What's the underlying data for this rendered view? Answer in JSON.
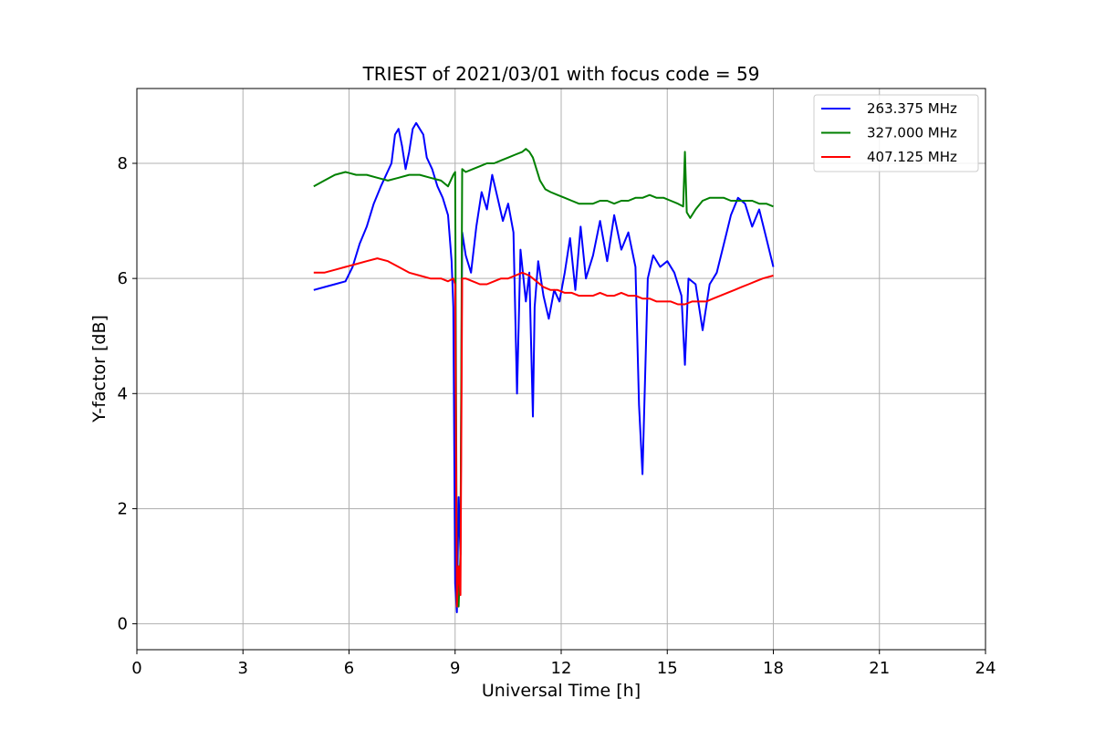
{
  "chart_data": {
    "type": "line",
    "title": "TRIEST of 2021/03/01 with focus code = 59",
    "xlabel": "Universal Time [h]",
    "ylabel": "Y-factor [dB]",
    "xlim": [
      0,
      24
    ],
    "ylim": [
      -0.45,
      9.3
    ],
    "xticks": [
      0,
      3,
      6,
      9,
      12,
      15,
      18,
      21,
      24
    ],
    "yticks": [
      0,
      2,
      4,
      6,
      8
    ],
    "grid": true,
    "legend_position": "top-right",
    "series": [
      {
        "name": "263.375 MHz",
        "color": "#0000ff",
        "x": [
          5.0,
          5.3,
          5.6,
          5.9,
          6.1,
          6.3,
          6.5,
          6.7,
          6.9,
          7.05,
          7.2,
          7.3,
          7.4,
          7.5,
          7.6,
          7.7,
          7.8,
          7.9,
          8.0,
          8.1,
          8.2,
          8.35,
          8.5,
          8.65,
          8.8,
          8.9,
          8.95,
          9.0,
          9.05,
          9.1,
          9.15,
          9.2,
          9.3,
          9.45,
          9.6,
          9.75,
          9.9,
          10.05,
          10.2,
          10.35,
          10.5,
          10.65,
          10.75,
          10.85,
          11.0,
          11.1,
          11.2,
          11.25,
          11.35,
          11.5,
          11.65,
          11.8,
          11.95,
          12.1,
          12.25,
          12.4,
          12.55,
          12.7,
          12.9,
          13.1,
          13.3,
          13.5,
          13.7,
          13.9,
          14.1,
          14.2,
          14.3,
          14.45,
          14.6,
          14.8,
          15.0,
          15.2,
          15.4,
          15.5,
          15.6,
          15.8,
          16.0,
          16.2,
          16.4,
          16.6,
          16.8,
          17.0,
          17.2,
          17.4,
          17.6,
          17.8,
          18.0
        ],
        "y": [
          5.8,
          5.85,
          5.9,
          5.95,
          6.2,
          6.6,
          6.9,
          7.3,
          7.6,
          7.8,
          8.0,
          8.5,
          8.6,
          8.3,
          7.9,
          8.2,
          8.6,
          8.7,
          8.6,
          8.5,
          8.1,
          7.9,
          7.6,
          7.4,
          7.1,
          6.3,
          5.5,
          0.7,
          0.2,
          2.2,
          1.2,
          6.8,
          6.4,
          6.1,
          6.9,
          7.5,
          7.2,
          7.8,
          7.4,
          7.0,
          7.3,
          6.8,
          4.0,
          6.5,
          5.6,
          6.1,
          3.6,
          5.5,
          6.3,
          5.7,
          5.3,
          5.8,
          5.6,
          6.1,
          6.7,
          5.8,
          6.9,
          6.0,
          6.4,
          7.0,
          6.3,
          7.1,
          6.5,
          6.8,
          6.2,
          3.8,
          2.6,
          6.0,
          6.4,
          6.2,
          6.3,
          6.1,
          5.7,
          4.5,
          6.0,
          5.9,
          5.1,
          5.9,
          6.1,
          6.6,
          7.1,
          7.4,
          7.3,
          6.9,
          7.2,
          6.7,
          6.2
        ]
      },
      {
        "name": "327.000 MHz",
        "color": "#008000",
        "x": [
          5.0,
          5.3,
          5.6,
          5.9,
          6.2,
          6.5,
          6.8,
          7.1,
          7.4,
          7.7,
          8.0,
          8.3,
          8.6,
          8.8,
          8.95,
          9.0,
          9.05,
          9.1,
          9.15,
          9.2,
          9.3,
          9.5,
          9.7,
          9.9,
          10.1,
          10.3,
          10.5,
          10.7,
          10.9,
          11.0,
          11.1,
          11.2,
          11.3,
          11.4,
          11.55,
          11.7,
          11.9,
          12.1,
          12.3,
          12.5,
          12.7,
          12.9,
          13.1,
          13.3,
          13.5,
          13.7,
          13.9,
          14.1,
          14.3,
          14.5,
          14.7,
          14.9,
          15.1,
          15.3,
          15.45,
          15.5,
          15.55,
          15.65,
          15.8,
          16.0,
          16.2,
          16.4,
          16.6,
          16.8,
          17.0,
          17.2,
          17.4,
          17.6,
          17.8,
          18.0
        ],
        "y": [
          7.6,
          7.7,
          7.8,
          7.85,
          7.8,
          7.8,
          7.75,
          7.7,
          7.75,
          7.8,
          7.8,
          7.75,
          7.7,
          7.6,
          7.8,
          7.85,
          0.4,
          0.3,
          1.2,
          7.9,
          7.85,
          7.9,
          7.95,
          8.0,
          8.0,
          8.05,
          8.1,
          8.15,
          8.2,
          8.25,
          8.2,
          8.1,
          7.9,
          7.7,
          7.55,
          7.5,
          7.45,
          7.4,
          7.35,
          7.3,
          7.3,
          7.3,
          7.35,
          7.35,
          7.3,
          7.35,
          7.35,
          7.4,
          7.4,
          7.45,
          7.4,
          7.4,
          7.35,
          7.3,
          7.25,
          8.2,
          7.15,
          7.05,
          7.2,
          7.35,
          7.4,
          7.4,
          7.4,
          7.35,
          7.35,
          7.35,
          7.35,
          7.3,
          7.3,
          7.25
        ]
      },
      {
        "name": "407.125 MHz",
        "color": "#ff0000",
        "x": [
          5.0,
          5.3,
          5.6,
          5.9,
          6.2,
          6.5,
          6.8,
          7.1,
          7.4,
          7.7,
          8.0,
          8.3,
          8.6,
          8.8,
          8.95,
          9.0,
          9.05,
          9.1,
          9.15,
          9.2,
          9.3,
          9.5,
          9.7,
          9.9,
          10.1,
          10.3,
          10.5,
          10.7,
          10.9,
          11.1,
          11.3,
          11.5,
          11.7,
          11.9,
          12.1,
          12.3,
          12.5,
          12.7,
          12.9,
          13.1,
          13.3,
          13.5,
          13.7,
          13.9,
          14.1,
          14.3,
          14.5,
          14.7,
          14.9,
          15.1,
          15.3,
          15.5,
          15.7,
          15.9,
          16.1,
          16.3,
          16.5,
          16.7,
          16.9,
          17.1,
          17.3,
          17.5,
          17.7,
          18.0
        ],
        "y": [
          6.1,
          6.1,
          6.15,
          6.2,
          6.25,
          6.3,
          6.35,
          6.3,
          6.2,
          6.1,
          6.05,
          6.0,
          6.0,
          5.95,
          6.0,
          5.9,
          0.3,
          1.0,
          0.5,
          6.0,
          6.0,
          5.95,
          5.9,
          5.9,
          5.95,
          6.0,
          6.0,
          6.05,
          6.1,
          6.05,
          5.95,
          5.85,
          5.8,
          5.8,
          5.75,
          5.75,
          5.7,
          5.7,
          5.7,
          5.75,
          5.7,
          5.7,
          5.75,
          5.7,
          5.7,
          5.65,
          5.65,
          5.6,
          5.6,
          5.6,
          5.55,
          5.55,
          5.6,
          5.6,
          5.6,
          5.65,
          5.7,
          5.75,
          5.8,
          5.85,
          5.9,
          5.95,
          6.0,
          6.05
        ]
      }
    ]
  }
}
